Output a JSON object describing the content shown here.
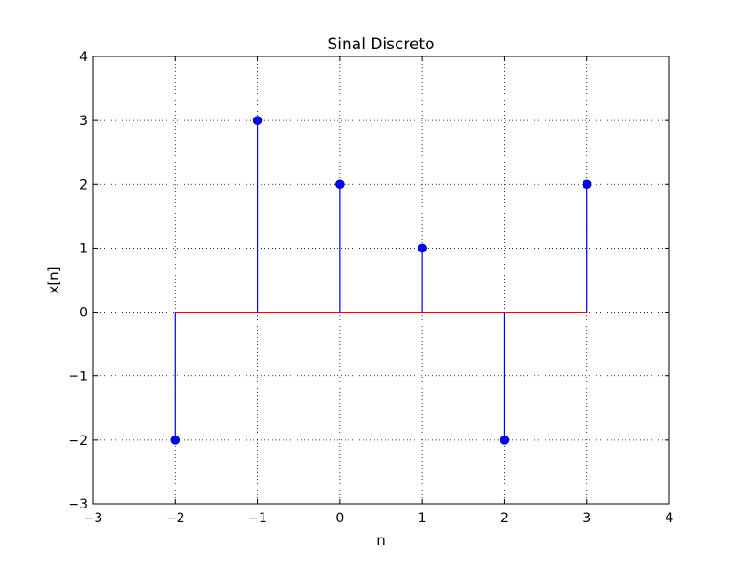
{
  "chart_data": {
    "type": "stem",
    "title": "Sinal Discreto",
    "xlabel": "n",
    "ylabel": "x[n]",
    "xlim": [
      -3,
      4
    ],
    "ylim": [
      -3,
      4
    ],
    "xticks": [
      -3,
      -2,
      -1,
      0,
      1,
      2,
      3,
      4
    ],
    "yticks": [
      -3,
      -2,
      -1,
      0,
      1,
      2,
      3,
      4
    ],
    "xtick_labels": [
      "−3",
      "−2",
      "−1",
      "0",
      "1",
      "2",
      "3",
      "4"
    ],
    "ytick_labels": [
      "−3",
      "−2",
      "−1",
      "0",
      "1",
      "2",
      "3",
      "4"
    ],
    "grid": true,
    "x": [
      -2,
      -1,
      0,
      1,
      2,
      3
    ],
    "values": [
      -2,
      3,
      2,
      1,
      -2,
      2
    ],
    "baseline": 0,
    "colors": {
      "stem": "#0000ff",
      "marker": "#0000ff",
      "baseline": "#ff0000"
    }
  }
}
